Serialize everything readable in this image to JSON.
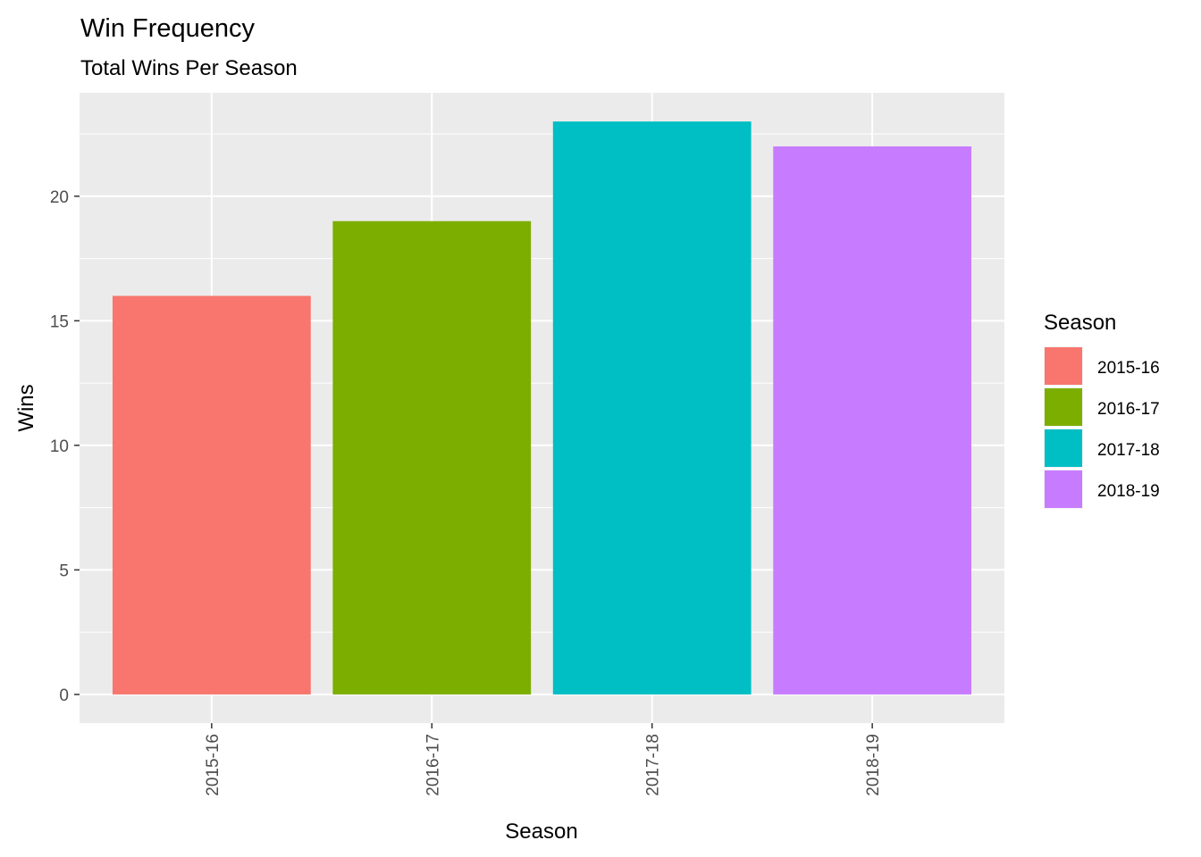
{
  "chart_data": {
    "type": "bar",
    "title": "Win Frequency",
    "subtitle": "Total Wins Per Season",
    "xlabel": "Season",
    "ylabel": "Wins",
    "categories": [
      "2015-16",
      "2016-17",
      "2017-18",
      "2018-19"
    ],
    "values": [
      16,
      19,
      23,
      22
    ],
    "colors": [
      "#F8766D",
      "#7CAE00",
      "#00BFC4",
      "#C77CFF"
    ],
    "ylim": [
      0,
      23
    ],
    "yticks": [
      "0",
      "5",
      "10",
      "15",
      "20"
    ],
    "ytick_values": [
      0,
      5,
      10,
      15,
      20
    ],
    "grid": true,
    "legend": {
      "title": "Season",
      "placement": "right",
      "entries": [
        "2015-16",
        "2016-17",
        "2017-18",
        "2018-19"
      ]
    }
  }
}
